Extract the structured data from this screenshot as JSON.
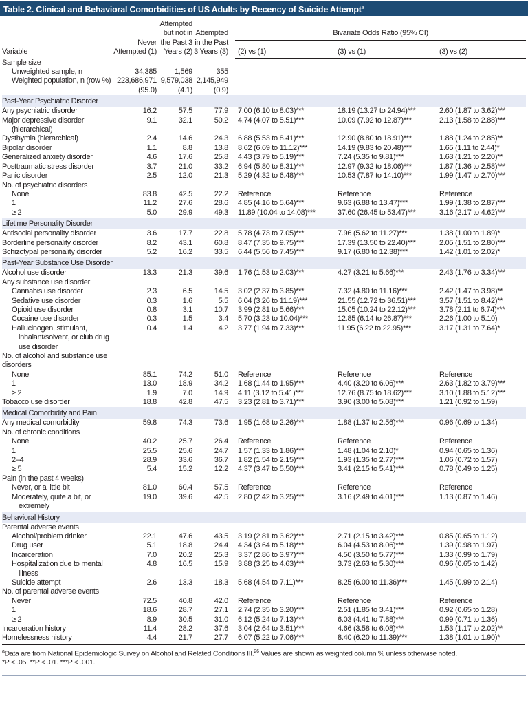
{
  "title": "Table 2. Clinical and Behavioral Comorbidities of US Adults by Recency of Suicide Attempt",
  "title_sup": "a",
  "header": {
    "variable": "Variable",
    "col1": "Never Attempted (1)",
    "col2": "Attempted but not in the Past 3 Years (2)",
    "col3": "Attempted in the Past 3 Years (3)",
    "bivariate": "Bivariate Odds Ratio (95% CI)",
    "or1": "(2) vs (1)",
    "or2": "(3) vs (1)",
    "or3": "(3) vs (2)"
  },
  "rows": [
    {
      "label": "Sample size",
      "level": 0
    },
    {
      "label": "Unweighted sample, n",
      "level": 1,
      "c1": "34,385",
      "c2": "1,569",
      "c3": "355"
    },
    {
      "label": "Weighted population, n (row %)",
      "level": 1,
      "c1": "223,686,971 (95.0)",
      "c2": "9,579,038 (4.1)",
      "c3": "2,145,949 (0.9)"
    },
    {
      "section": "Past-Year Psychiatric Disorder"
    },
    {
      "label": "Any psychiatric disorder",
      "level": 0,
      "c1": "16.2",
      "c2": "57.5",
      "c3": "77.9",
      "o1": "7.00 (6.10 to 8.03)***",
      "o2": "18.19 (13.27 to 24.94)***",
      "o3": "2.60 (1.87 to 3.62)***"
    },
    {
      "label": "Major depressive disorder (hierarchical)",
      "level": 0,
      "c1": "9.1",
      "c2": "32.1",
      "c3": "50.2",
      "o1": "4.74 (4.07 to 5.51)***",
      "o2": "10.09 (7.92 to 12.87)***",
      "o3": "2.13 (1.58 to 2.88)***"
    },
    {
      "label": "Dysthymia (hierarchical)",
      "level": 0,
      "c1": "2.4",
      "c2": "14.6",
      "c3": "24.3",
      "o1": "6.88 (5.53 to 8.41)***",
      "o2": "12.90 (8.80 to 18.91)***",
      "o3": "1.88 (1.24 to 2.85)**"
    },
    {
      "label": "Bipolar disorder",
      "level": 0,
      "c1": "1.1",
      "c2": "8.8",
      "c3": "13.8",
      "o1": "8.62 (6.69 to 11.12)***",
      "o2": "14.19 (9.83 to 20.48)***",
      "o3": "1.65 (1.11 to 2.44)*"
    },
    {
      "label": "Generalized anxiety disorder",
      "level": 0,
      "c1": "4.6",
      "c2": "17.6",
      "c3": "25.8",
      "o1": "4.43 (3.79 to 5.19)***",
      "o2": "7.24 (5.35 to 9.81)***",
      "o3": "1.63 (1.21 to 2.20)**"
    },
    {
      "label": "Posttraumatic stress disorder",
      "level": 0,
      "c1": "3.7",
      "c2": "21.0",
      "c3": "33.2",
      "o1": "6.94 (5.80 to 8.31)***",
      "o2": "12.97 (9.32 to 18.06)***",
      "o3": "1.87 (1.36 to 2.58)***"
    },
    {
      "label": "Panic disorder",
      "level": 0,
      "c1": "2.5",
      "c2": "12.0",
      "c3": "21.3",
      "o1": "5.29 (4.32 to 6.48)***",
      "o2": "10.53 (7.87 to 14.10)***",
      "o3": "1.99 (1.47 to 2.70)***"
    },
    {
      "label": "No. of psychiatric disorders",
      "level": 0
    },
    {
      "label": "None",
      "level": 1,
      "c1": "83.8",
      "c2": "42.5",
      "c3": "22.2",
      "o1": "Reference",
      "o2": "Reference",
      "o3": "Reference"
    },
    {
      "label": "1",
      "level": 1,
      "c1": "11.2",
      "c2": "27.6",
      "c3": "28.6",
      "o1": "4.85 (4.16 to 5.64)***",
      "o2": "9.63 (6.88 to 13.47)***",
      "o3": "1.99 (1.38 to 2.87)***"
    },
    {
      "label": "≥ 2",
      "level": 1,
      "c1": "5.0",
      "c2": "29.9",
      "c3": "49.3",
      "o1": "11.89 (10.04 to 14.08)***",
      "o2": "37.60 (26.45 to 53.47)***",
      "o3": "3.16 (2.17 to 4.62)***"
    },
    {
      "section": "Lifetime Personality Disorder"
    },
    {
      "label": "Antisocial personality disorder",
      "level": 0,
      "c1": "3.6",
      "c2": "17.7",
      "c3": "22.8",
      "o1": "5.78 (4.73 to 7.05)***",
      "o2": "7.96 (5.62 to 11.27)***",
      "o3": "1.38 (1.00 to 1.89)*"
    },
    {
      "label": "Borderline personality disorder",
      "level": 0,
      "c1": "8.2",
      "c2": "43.1",
      "c3": "60.8",
      "o1": "8.47 (7.35 to 9.75)***",
      "o2": "17.39 (13.50 to 22.40)***",
      "o3": "2.05 (1.51 to 2.80)***"
    },
    {
      "label": "Schizotypal personality disorder",
      "level": 0,
      "c1": "5.2",
      "c2": "16.2",
      "c3": "33.5",
      "o1": "6.44 (5.56 to 7.45)***",
      "o2": "9.17 (6.80 to 12.38)***",
      "o3": "1.42 (1.01 to 2.02)*"
    },
    {
      "section": "Past-Year Substance Use Disorder"
    },
    {
      "label": "Alcohol use disorder",
      "level": 0,
      "c1": "13.3",
      "c2": "21.3",
      "c3": "39.6",
      "o1": "1.76 (1.53 to 2.03)***",
      "o2": "4.27 (3.21 to 5.66)***",
      "o3": "2.43 (1.76 to 3.34)***"
    },
    {
      "label": "Any substance use disorder",
      "level": 0
    },
    {
      "label": "Cannabis use disorder",
      "level": 1,
      "c1": "2.3",
      "c2": "6.5",
      "c3": "14.5",
      "o1": "3.02 (2.37 to 3.85)***",
      "o2": "7.32 (4.80 to 11.16)***",
      "o3": "2.42 (1.47 to 3.98)**"
    },
    {
      "label": "Sedative use disorder",
      "level": 1,
      "c1": "0.3",
      "c2": "1.6",
      "c3": "5.5",
      "o1": "6.04 (3.26 to 11.19)***",
      "o2": "21.55 (12.72 to 36.51)***",
      "o3": "3.57 (1.51 to 8.42)**"
    },
    {
      "label": "Opioid use disorder",
      "level": 1,
      "c1": "0.8",
      "c2": "3.1",
      "c3": "10.7",
      "o1": "3.99 (2.81 to 5.66)***",
      "o2": "15.05 (10.24 to 22.12)***",
      "o3": "3.78 (2.11 to 6.74)***"
    },
    {
      "label": "Cocaine use disorder",
      "level": 1,
      "c1": "0.3",
      "c2": "1.5",
      "c3": "3.4",
      "o1": "5.70 (3.23 to 10.04)***",
      "o2": "12.85 (6.14 to 26.87)***",
      "o3": "2.26 (1.00 to 5.10)"
    },
    {
      "label": "Hallucinogen, stimulant, inhalant/solvent, or club drug use disorder",
      "level": 1,
      "c1": "0.4",
      "c2": "1.4",
      "c3": "4.2",
      "o1": "3.77 (1.94 to 7.33)***",
      "o2": "11.95 (6.22 to 22.95)***",
      "o3": "3.17 (1.31 to 7.64)*"
    },
    {
      "label": "No. of alcohol and substance use disorders",
      "level": 2
    },
    {
      "label": "None",
      "level": 1,
      "c1": "85.1",
      "c2": "74.2",
      "c3": "51.0",
      "o1": "Reference",
      "o2": "Reference",
      "o3": "Reference"
    },
    {
      "label": "1",
      "level": 1,
      "c1": "13.0",
      "c2": "18.9",
      "c3": "34.2",
      "o1": "1.68 (1.44 to 1.95)***",
      "o2": "4.40 (3.20 to 6.06)***",
      "o3": "2.63 (1.82 to 3.79)***"
    },
    {
      "label": "≥ 2",
      "level": 1,
      "c1": "1.9",
      "c2": "7.0",
      "c3": "14.9",
      "o1": "4.11 (3.12 to 5.41)***",
      "o2": "12.76 (8.75 to 18.62)***",
      "o3": "3.10 (1.88 to 5.12)***"
    },
    {
      "label": "Tobacco use disorder",
      "level": 0,
      "c1": "18.8",
      "c2": "42.8",
      "c3": "47.5",
      "o1": "3.23 (2.81 to 3.71)***",
      "o2": "3.90 (3.00 to 5.08)***",
      "o3": "1.21 (0.92 to 1.59)"
    },
    {
      "section": "Medical Comorbidity and Pain"
    },
    {
      "label": "Any medical comorbidity",
      "level": 0,
      "c1": "59.8",
      "c2": "74.3",
      "c3": "73.6",
      "o1": "1.95 (1.68 to 2.26)***",
      "o2": "1.88 (1.37 to 2.56)***",
      "o3": "0.96 (0.69 to 1.34)"
    },
    {
      "label": "No. of chronic conditions",
      "level": 0
    },
    {
      "label": "None",
      "level": 1,
      "c1": "40.2",
      "c2": "25.7",
      "c3": "26.4",
      "o1": "Reference",
      "o2": "Reference",
      "o3": "Reference"
    },
    {
      "label": "1",
      "level": 1,
      "c1": "25.5",
      "c2": "25.6",
      "c3": "24.7",
      "o1": "1.57 (1.33 to 1.86)***",
      "o2": "1.48 (1.04 to 2.10)*",
      "o3": "0.94 (0.65 to 1.36)"
    },
    {
      "label": "2–4",
      "level": 1,
      "c1": "28.9",
      "c2": "33.6",
      "c3": "36.7",
      "o1": "1.82 (1.54 to 2.15)***",
      "o2": "1.93 (1.35 to 2.77)***",
      "o3": "1.06 (0.72 to 1.57)"
    },
    {
      "label": "≥ 5",
      "level": 1,
      "c1": "5.4",
      "c2": "15.2",
      "c3": "12.2",
      "o1": "4.37 (3.47 to 5.50)***",
      "o2": "3.41 (2.15 to 5.41)***",
      "o3": "0.78 (0.49 to 1.25)"
    },
    {
      "label": "Pain (in the past 4 weeks)",
      "level": 0
    },
    {
      "label": "Never, or a little bit",
      "level": 1,
      "c1": "81.0",
      "c2": "60.4",
      "c3": "57.5",
      "o1": "Reference",
      "o2": "Reference",
      "o3": "Reference"
    },
    {
      "label": "Moderately, quite a bit, or extremely",
      "level": 1,
      "c1": "19.0",
      "c2": "39.6",
      "c3": "42.5",
      "o1": "2.80 (2.42 to 3.25)***",
      "o2": "3.16 (2.49 to 4.01)***",
      "o3": "1.13 (0.87 to 1.46)"
    },
    {
      "section": "Behavioral History"
    },
    {
      "label": "Parental adverse events",
      "level": 0
    },
    {
      "label": "Alcohol/problem drinker",
      "level": 1,
      "c1": "22.1",
      "c2": "47.6",
      "c3": "43.5",
      "o1": "3.19 (2.81 to 3.62)***",
      "o2": "2.71 (2.15 to 3.42)***",
      "o3": "0.85 (0.65 to 1.12)"
    },
    {
      "label": "Drug user",
      "level": 1,
      "c1": "5.1",
      "c2": "18.8",
      "c3": "24.4",
      "o1": "4.34 (3.64 to 5.18)***",
      "o2": "6.04 (4.53 to 8.06)***",
      "o3": "1.39 (0.98 to 1.97)"
    },
    {
      "label": "Incarceration",
      "level": 1,
      "c1": "7.0",
      "c2": "20.2",
      "c3": "25.3",
      "o1": "3.37 (2.86 to 3.97)***",
      "o2": "4.50 (3.50 to 5.77)***",
      "o3": "1.33 (0.99 to 1.79)"
    },
    {
      "label": "Hospitalization due to mental illness",
      "level": 1,
      "c1": "4.8",
      "c2": "16.5",
      "c3": "15.9",
      "o1": "3.88 (3.25 to 4.63)***",
      "o2": "3.73 (2.63 to 5.30)***",
      "o3": "0.96 (0.65 to 1.42)"
    },
    {
      "label": "Suicide attempt",
      "level": 1,
      "c1": "2.6",
      "c2": "13.3",
      "c3": "18.3",
      "o1": "5.68 (4.54 to 7.11)***",
      "o2": "8.25 (6.00 to 11.36)***",
      "o3": "1.45 (0.99 to 2.14)"
    },
    {
      "label": "No. of parental adverse events",
      "level": 0
    },
    {
      "label": "Never",
      "level": 1,
      "c1": "72.5",
      "c2": "40.8",
      "c3": "42.0",
      "o1": "Reference",
      "o2": "Reference",
      "o3": "Reference"
    },
    {
      "label": "1",
      "level": 1,
      "c1": "18.6",
      "c2": "28.7",
      "c3": "27.1",
      "o1": "2.74 (2.35 to 3.20)***",
      "o2": "2.51 (1.85 to 3.41)***",
      "o3": "0.92 (0.65 to 1.28)"
    },
    {
      "label": "≥ 2",
      "level": 1,
      "c1": "8.9",
      "c2": "30.5",
      "c3": "31.0",
      "o1": "6.12 (5.24 to 7.13)***",
      "o2": "6.03 (4.41 to 7.88)***",
      "o3": "0.99 (0.71 to 1.36)"
    },
    {
      "label": "Incarceration history",
      "level": 0,
      "c1": "11.4",
      "c2": "28.2",
      "c3": "37.6",
      "o1": "3.04 (2.64 to 3.51)***",
      "o2": "4.66 (3.58 to 6.08)***",
      "o3": "1.53 (1.17 to 2.02)**"
    },
    {
      "label": "Homelessness history",
      "level": 0,
      "c1": "4.4",
      "c2": "21.7",
      "c3": "27.7",
      "o1": "6.07 (5.22 to 7.06)***",
      "o2": "8.40 (6.20 to 11.39)***",
      "o3": "1.38 (1.01 to 1.90)*"
    }
  ],
  "footnotes": {
    "a_marker": "a",
    "a_text": "Data are from National Epidemiologic Survey on Alcohol and Related Conditions III.",
    "a_ref": "26",
    "a_text2": " Values are shown as weighted column % unless otherwise noted.",
    "significance": "*P < .05.  **P < .01.  ***P < .001."
  },
  "colors": {
    "title_bar": "#1d4b74",
    "section_band": "#e6eaf5",
    "text": "#231f20"
  }
}
